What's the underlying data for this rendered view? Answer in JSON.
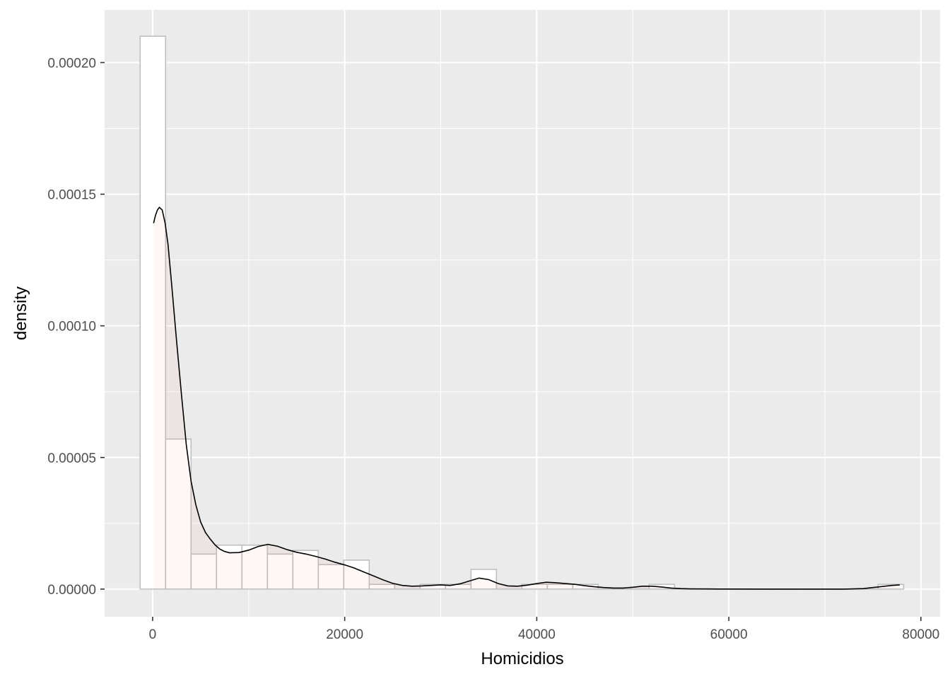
{
  "chart_data": {
    "type": "histogram",
    "title": "",
    "xlabel": "Homicidios",
    "ylabel": "density",
    "xlim": [
      -5000,
      82000
    ],
    "ylim": [
      -1.05e-05,
      0.00022
    ],
    "x_ticks": [
      0,
      20000,
      40000,
      60000,
      80000
    ],
    "x_tick_labels": [
      "0",
      "20000",
      "40000",
      "60000",
      "80000"
    ],
    "y_ticks": [
      0,
      5e-05,
      0.0001,
      0.00015,
      0.0002
    ],
    "y_tick_labels": [
      "0.00000",
      "0.00005",
      "0.00010",
      "0.00015",
      "0.00020"
    ],
    "grid": true,
    "colors": {
      "panel_bg": "#EBEBEB",
      "grid_major": "#FFFFFF",
      "bar_fill": "#FFFFFF",
      "bar_outline": "#BFBFBF",
      "density_fill": "#FF6A6A",
      "density_line": "#000000",
      "tick_text": "#4D4D4D"
    },
    "histogram": {
      "bin_width": 2650,
      "bins": [
        {
          "x0": -1300,
          "x1": 1350,
          "density": 0.00021
        },
        {
          "x0": 1350,
          "x1": 4000,
          "density": 5.7e-05
        },
        {
          "x0": 4000,
          "x1": 6650,
          "density": 1.33e-05
        },
        {
          "x0": 6650,
          "x1": 9300,
          "density": 1.67e-05
        },
        {
          "x0": 9300,
          "x1": 11950,
          "density": 1.67e-05
        },
        {
          "x0": 11950,
          "x1": 14600,
          "density": 1.33e-05
        },
        {
          "x0": 14600,
          "x1": 17250,
          "density": 1.47e-05
        },
        {
          "x0": 17250,
          "x1": 19900,
          "density": 9.3e-06
        },
        {
          "x0": 19900,
          "x1": 22550,
          "density": 1.1e-05
        },
        {
          "x0": 22550,
          "x1": 25200,
          "density": 1.8e-06
        },
        {
          "x0": 25200,
          "x1": 27850,
          "density": 0.0
        },
        {
          "x0": 27850,
          "x1": 30500,
          "density": 1.8e-06
        },
        {
          "x0": 30500,
          "x1": 33150,
          "density": 1.8e-06
        },
        {
          "x0": 33150,
          "x1": 35800,
          "density": 7.5e-06
        },
        {
          "x0": 35800,
          "x1": 38450,
          "density": 0.0
        },
        {
          "x0": 38450,
          "x1": 41100,
          "density": 1.8e-06
        },
        {
          "x0": 41100,
          "x1": 43750,
          "density": 1.8e-06
        },
        {
          "x0": 43750,
          "x1": 46400,
          "density": 1.8e-06
        },
        {
          "x0": 46400,
          "x1": 49050,
          "density": 0.0
        },
        {
          "x0": 49050,
          "x1": 51700,
          "density": 0.0
        },
        {
          "x0": 51700,
          "x1": 54350,
          "density": 1.8e-06
        },
        {
          "x0": 54350,
          "x1": 57000,
          "density": 0.0
        },
        {
          "x0": 57000,
          "x1": 59650,
          "density": 0.0
        },
        {
          "x0": 59650,
          "x1": 62300,
          "density": 0.0
        },
        {
          "x0": 62300,
          "x1": 64950,
          "density": 0.0
        },
        {
          "x0": 64950,
          "x1": 67600,
          "density": 0.0
        },
        {
          "x0": 67600,
          "x1": 70250,
          "density": 0.0
        },
        {
          "x0": 70250,
          "x1": 72900,
          "density": 0.0
        },
        {
          "x0": 72900,
          "x1": 75550,
          "density": 0.0
        },
        {
          "x0": 75550,
          "x1": 78200,
          "density": 1.8e-06
        }
      ]
    },
    "density_curve": {
      "x": [
        100,
        300,
        500,
        700,
        1000,
        1300,
        1600,
        2000,
        2500,
        3000,
        3500,
        4000,
        4500,
        5000,
        5500,
        6000,
        6500,
        7000,
        7500,
        8000,
        9000,
        10000,
        11000,
        12000,
        13000,
        14000,
        15000,
        16000,
        17000,
        18000,
        19000,
        20000,
        21000,
        22000,
        23000,
        24000,
        25000,
        26000,
        27000,
        28000,
        29000,
        30000,
        31000,
        32000,
        33000,
        34000,
        35000,
        36000,
        37000,
        38000,
        39000,
        40000,
        41000,
        42000,
        43000,
        44000,
        45000,
        46000,
        47000,
        48000,
        49000,
        50000,
        51000,
        52000,
        53000,
        54000,
        55000,
        56000,
        58000,
        60000,
        64000,
        68000,
        72000,
        74000,
        75000,
        76000,
        77000,
        77800
      ],
      "y": [
        0.000139,
        0.000142,
        0.000144,
        0.000145,
        0.000144,
        0.000139,
        0.000131,
        0.000115,
        9.4e-05,
        7.4e-05,
        5.5e-05,
        4.1e-05,
        3.2e-05,
        2.55e-05,
        2.15e-05,
        1.9e-05,
        1.68e-05,
        1.52e-05,
        1.43e-05,
        1.38e-05,
        1.39e-05,
        1.48e-05,
        1.62e-05,
        1.7e-05,
        1.63e-05,
        1.5e-05,
        1.4e-05,
        1.33e-05,
        1.24e-05,
        1.14e-05,
        1.02e-05,
        9.2e-06,
        8e-06,
        6.5e-06,
        5e-06,
        3.5e-06,
        2.2e-06,
        1.4e-06,
        1.1e-06,
        1.2e-06,
        1.4e-06,
        1.6e-06,
        1.4e-06,
        2e-06,
        3.1e-06,
        4.2e-06,
        3.6e-06,
        2.1e-06,
        1.2e-06,
        1.1e-06,
        1.5e-06,
        2.1e-06,
        2.6e-06,
        2.4e-06,
        2.1e-06,
        1.8e-06,
        1.3e-06,
        9e-07,
        6e-07,
        4e-07,
        4e-07,
        7e-07,
        1.1e-06,
        1.1e-06,
        8e-07,
        4e-07,
        2e-07,
        1e-07,
        5e-08,
        2e-08,
        0.0,
        0.0,
        0.0,
        2e-07,
        6e-07,
        1e-06,
        1.4e-06,
        1.6e-06
      ]
    }
  }
}
